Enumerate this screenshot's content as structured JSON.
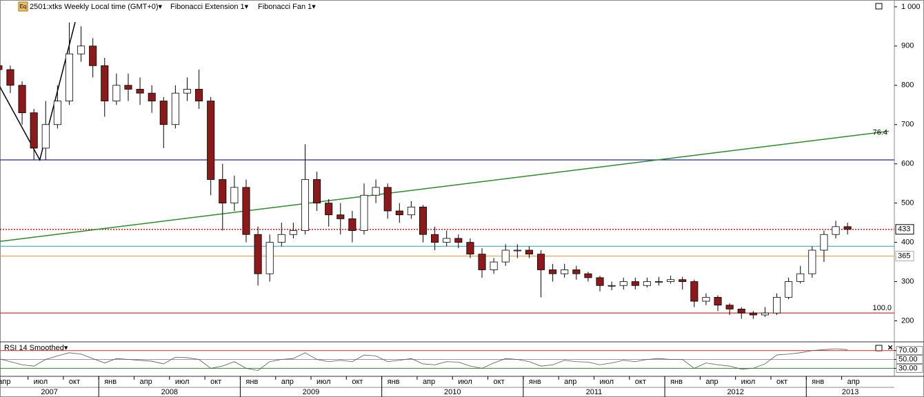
{
  "chart_data": [
    {
      "type": "candlestick",
      "icon": "Eq",
      "title": "2501:xtks Weekly Local time (GMT+0)▾",
      "overlays": [
        "Fibonacci Extension 1▾",
        "Fibonacci Fan 1▾"
      ],
      "x": [
        "2007-03",
        "2007-04",
        "2007-05",
        "2007-06",
        "2007-07",
        "2007-08",
        "2007-09",
        "2007-10",
        "2007-11",
        "2007-12",
        "2008-01",
        "2008-02",
        "2008-03",
        "2008-04",
        "2008-05",
        "2008-06",
        "2008-07",
        "2008-08",
        "2008-09",
        "2008-10",
        "2008-11",
        "2008-12",
        "2009-01",
        "2009-02",
        "2009-03",
        "2009-04",
        "2009-05",
        "2009-06",
        "2009-07",
        "2009-08",
        "2009-09",
        "2009-10",
        "2009-11",
        "2009-12",
        "2010-01",
        "2010-02",
        "2010-03",
        "2010-04",
        "2010-05",
        "2010-06",
        "2010-07",
        "2010-08",
        "2010-09",
        "2010-10",
        "2010-11",
        "2010-12",
        "2011-01",
        "2011-02",
        "2011-03",
        "2011-04",
        "2011-05",
        "2011-06",
        "2011-07",
        "2011-08",
        "2011-09",
        "2011-10",
        "2011-11",
        "2011-12",
        "2012-01",
        "2012-02",
        "2012-03",
        "2012-04",
        "2012-05",
        "2012-06",
        "2012-07",
        "2012-08",
        "2012-09",
        "2012-10",
        "2012-11",
        "2012-12",
        "2013-01",
        "2013-02",
        "2013-03",
        "2013-04"
      ],
      "open": [
        860,
        850,
        840,
        800,
        730,
        640,
        700,
        760,
        880,
        900,
        850,
        760,
        800,
        790,
        780,
        760,
        700,
        780,
        790,
        760,
        560,
        500,
        540,
        420,
        320,
        400,
        420,
        430,
        560,
        500,
        470,
        460,
        430,
        520,
        540,
        480,
        470,
        490,
        420,
        400,
        410,
        400,
        370,
        330,
        350,
        380,
        380,
        370,
        330,
        320,
        330,
        320,
        310,
        290,
        290,
        300,
        290,
        300,
        300,
        305,
        300,
        250,
        260,
        240,
        230,
        220,
        215,
        220,
        260,
        300,
        320,
        380,
        420,
        440
      ],
      "high": [
        880,
        870,
        850,
        810,
        740,
        760,
        800,
        960,
        950,
        920,
        870,
        830,
        830,
        820,
        800,
        770,
        800,
        820,
        840,
        770,
        600,
        570,
        560,
        440,
        420,
        450,
        450,
        650,
        580,
        510,
        500,
        480,
        550,
        560,
        550,
        500,
        505,
        495,
        440,
        430,
        420,
        410,
        385,
        360,
        395,
        395,
        390,
        380,
        345,
        345,
        340,
        325,
        315,
        300,
        310,
        310,
        310,
        312,
        315,
        312,
        305,
        270,
        265,
        245,
        235,
        225,
        235,
        270,
        310,
        340,
        390,
        430,
        455,
        450
      ],
      "low": [
        830,
        820,
        780,
        700,
        610,
        610,
        690,
        750,
        860,
        820,
        720,
        750,
        760,
        750,
        730,
        640,
        690,
        760,
        740,
        520,
        430,
        480,
        400,
        290,
        300,
        390,
        410,
        420,
        480,
        440,
        420,
        400,
        420,
        500,
        460,
        450,
        460,
        400,
        380,
        390,
        385,
        360,
        310,
        320,
        340,
        360,
        360,
        260,
        300,
        310,
        305,
        300,
        275,
        278,
        280,
        280,
        285,
        290,
        295,
        280,
        235,
        240,
        225,
        215,
        205,
        205,
        210,
        215,
        255,
        295,
        310,
        350,
        410,
        420
      ],
      "close": [
        850,
        840,
        800,
        730,
        640,
        700,
        760,
        880,
        900,
        850,
        760,
        800,
        790,
        780,
        760,
        700,
        780,
        790,
        760,
        560,
        500,
        540,
        420,
        320,
        400,
        420,
        430,
        560,
        500,
        470,
        460,
        430,
        520,
        540,
        480,
        470,
        490,
        420,
        400,
        410,
        400,
        370,
        330,
        350,
        380,
        380,
        370,
        330,
        320,
        330,
        320,
        310,
        290,
        290,
        300,
        290,
        300,
        300,
        305,
        300,
        250,
        260,
        240,
        230,
        220,
        215,
        220,
        260,
        300,
        320,
        380,
        420,
        440,
        433
      ],
      "up_color": "#ffffff",
      "down_color": "#8b1a1a",
      "xlim": [
        "2007-01",
        "2013-08"
      ],
      "ylim": [
        150,
        1005
      ],
      "yticks": [
        200,
        300,
        400,
        500,
        600,
        700,
        800,
        900,
        {
          "value": 1000,
          "label": "1 000"
        }
      ],
      "xticks": [
        {
          "value": "2007-04",
          "label": "апр"
        },
        {
          "value": "2007-07",
          "label": "июл"
        },
        {
          "value": "2007-10",
          "label": "окт"
        },
        {
          "value": "2008-01",
          "label": "янв"
        },
        {
          "value": "2008-04",
          "label": "апр"
        },
        {
          "value": "2008-07",
          "label": "июл"
        },
        {
          "value": "2008-10",
          "label": "окт"
        },
        {
          "value": "2009-01",
          "label": "янв"
        },
        {
          "value": "2009-04",
          "label": "апр"
        },
        {
          "value": "2009-07",
          "label": "июл"
        },
        {
          "value": "2009-10",
          "label": "окт"
        },
        {
          "value": "2010-01",
          "label": "янв"
        },
        {
          "value": "2010-04",
          "label": "апр"
        },
        {
          "value": "2010-07",
          "label": "июл"
        },
        {
          "value": "2010-10",
          "label": "окт"
        },
        {
          "value": "2011-01",
          "label": "янв"
        },
        {
          "value": "2011-04",
          "label": "апр"
        },
        {
          "value": "2011-07",
          "label": "июл"
        },
        {
          "value": "2011-10",
          "label": "окт"
        },
        {
          "value": "2012-01",
          "label": "янв"
        },
        {
          "value": "2012-04",
          "label": "апр"
        },
        {
          "value": "2012-07",
          "label": "июл"
        },
        {
          "value": "2012-10",
          "label": "окт"
        },
        {
          "value": "2013-01",
          "label": "янв"
        },
        {
          "value": "2013-04",
          "label": "апр"
        }
      ],
      "year_ticks": [
        2007,
        2008,
        2009,
        2010,
        2011,
        2012,
        2013
      ],
      "grid": false,
      "levels": [
        {
          "value": 610,
          "color": "#2020b0"
        },
        {
          "value": 390,
          "color": "#40a8b8"
        },
        {
          "value": 365,
          "color": "#f0a040",
          "show_value": true
        },
        {
          "value": 220,
          "color": "#e03030",
          "label": "100.0"
        }
      ],
      "last_price_line": {
        "color": "#cc0000",
        "style": "dotted"
      },
      "fan": {
        "x": [
          "2007-04",
          "2013-08"
        ],
        "values": [
          400,
          683
        ],
        "label": "76.4",
        "color": "#2a8a2a"
      },
      "extension": {
        "x": [
          "2007-04",
          "2007-08",
          "2007-11"
        ],
        "values": [
          830,
          610,
          961
        ],
        "color": "#000000"
      }
    },
    {
      "type": "line",
      "title": "RSI 14 Smoothed▾",
      "values": [
        55,
        52,
        45,
        38,
        35,
        50,
        58,
        65,
        62,
        52,
        42,
        52,
        50,
        48,
        46,
        40,
        55,
        54,
        50,
        30,
        35,
        45,
        30,
        25,
        45,
        50,
        52,
        65,
        50,
        45,
        48,
        45,
        60,
        58,
        45,
        48,
        52,
        40,
        38,
        45,
        44,
        35,
        30,
        42,
        52,
        50,
        45,
        35,
        38,
        48,
        45,
        44,
        38,
        42,
        48,
        45,
        50,
        52,
        50,
        50,
        30,
        42,
        38,
        35,
        28,
        30,
        40,
        60,
        62,
        65,
        70,
        72,
        74,
        72
      ],
      "color": "#555555",
      "ylim": [
        12,
        88
      ],
      "yticks": [
        {
          "value": 30,
          "label": "30.00"
        },
        {
          "value": 50,
          "label": "50.00"
        },
        {
          "value": 70,
          "label": "70.00"
        }
      ],
      "levels": [
        {
          "value": 70,
          "color": "#e03030"
        },
        {
          "value": 50,
          "color": "#999999"
        },
        {
          "value": 30,
          "color": "#2a8a2a"
        }
      ]
    }
  ]
}
